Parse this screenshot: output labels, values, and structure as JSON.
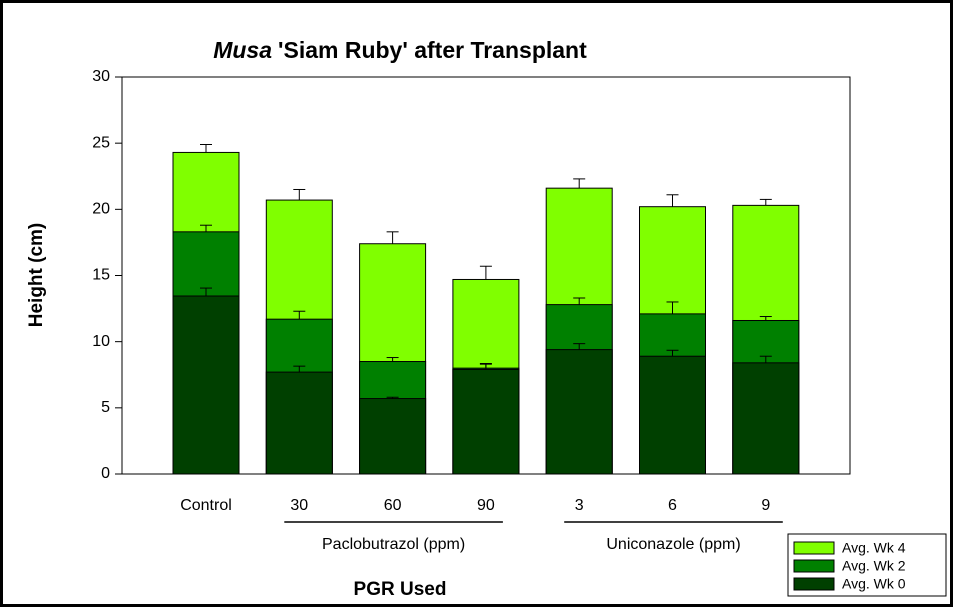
{
  "chart_data": {
    "type": "bar",
    "title": [
      "Musa",
      "'Siam Ruby' after Transplant"
    ],
    "x_label": "PGR Used",
    "y_label": "Height (cm)",
    "categories": [
      "Control",
      "30",
      "60",
      "90",
      "3",
      "6",
      "9"
    ],
    "groups": [
      {
        "name": "Paclobutrazol (ppm)",
        "members": [
          "30",
          "60",
          "90"
        ]
      },
      {
        "name": "Uniconazole (ppm)",
        "members": [
          "3",
          "6",
          "9"
        ]
      }
    ],
    "series": [
      {
        "name": "Avg. Wk 4",
        "color": "#80ff00",
        "values": [
          24.3,
          20.7,
          17.4,
          14.7,
          21.6,
          20.2,
          20.3
        ],
        "errors": [
          0.6,
          0.8,
          0.9,
          1.0,
          0.7,
          0.9,
          0.45
        ]
      },
      {
        "name": "Avg. Wk 2",
        "color": "#008000",
        "values": [
          18.3,
          11.7,
          8.5,
          8.0,
          12.8,
          12.1,
          11.6
        ],
        "errors": [
          0.5,
          0.6,
          0.3,
          0.3,
          0.5,
          0.9,
          0.3
        ]
      },
      {
        "name": "Avg. Wk 0",
        "color": "#004000",
        "values": [
          13.45,
          7.7,
          5.7,
          7.9,
          9.4,
          8.9,
          8.4
        ],
        "errors": [
          0.6,
          0.45,
          0.1,
          0.45,
          0.45,
          0.45,
          0.5
        ]
      }
    ],
    "ylim": [
      0,
      30
    ],
    "yticks": [
      0,
      5,
      10,
      15,
      20,
      25,
      30
    ],
    "legend": "lower right",
    "grid": false
  }
}
